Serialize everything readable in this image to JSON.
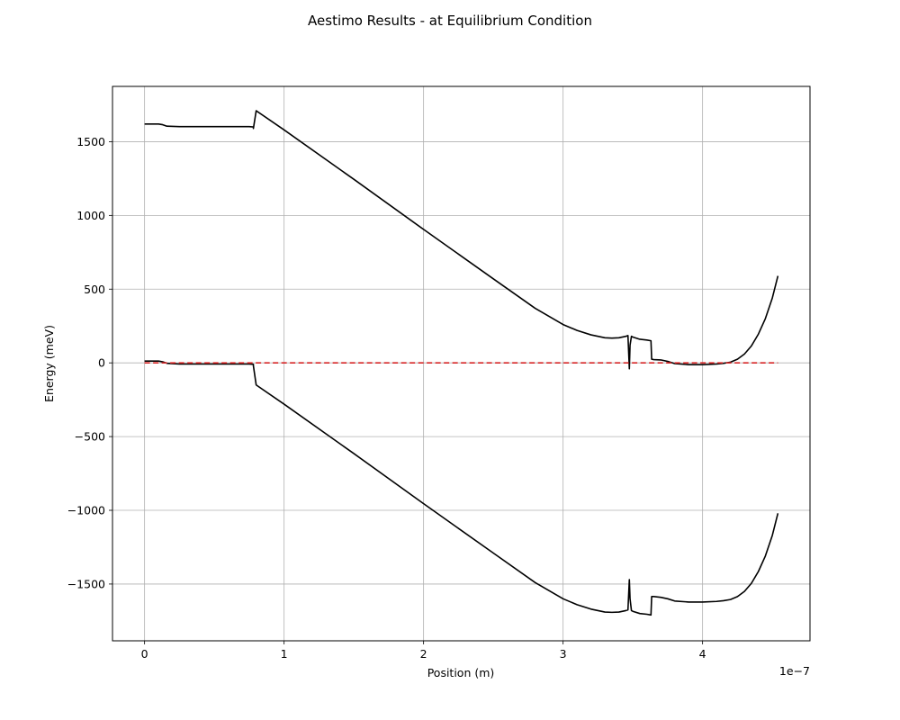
{
  "chart_data": {
    "type": "line",
    "title": "Aestimo Results - at Equilibrium Condition",
    "xlabel": "Position (m)",
    "ylabel": "Energy (meV)",
    "x_offset_label": "1e−7",
    "xlim": [
      -0.23,
      4.77
    ],
    "ylim": [
      -1885,
      1875
    ],
    "x_ticks": [
      0,
      1,
      2,
      3,
      4
    ],
    "x_tick_labels": [
      "0",
      "1",
      "2",
      "3",
      "4"
    ],
    "y_ticks": [
      -1500,
      -1000,
      -500,
      0,
      500,
      1000,
      1500
    ],
    "y_tick_labels": [
      "−1500",
      "−1000",
      "−500",
      "0",
      "500",
      "1000",
      "1500"
    ],
    "grid": true,
    "colors": {
      "band": "#000000",
      "fermi": "#d62728",
      "grid": "#b0b0b0"
    },
    "series": [
      {
        "style": "solid",
        "color": "#000000",
        "x": [
          0,
          0.1,
          0.13,
          0.16,
          0.25,
          0.5,
          0.75,
          0.78,
          0.78,
          0.8,
          1.0,
          1.5,
          2.0,
          2.5,
          2.8,
          3.0,
          3.1,
          3.2,
          3.3,
          3.35,
          3.4,
          3.45,
          3.465,
          3.475,
          3.48,
          3.49,
          3.5,
          3.55,
          3.6,
          3.63,
          3.635,
          3.65,
          3.7,
          3.75,
          3.8,
          3.9,
          4.0,
          4.1,
          4.15,
          4.2,
          4.25,
          4.3,
          4.35,
          4.4,
          4.45,
          4.5,
          4.54
        ],
        "y": [
          1620,
          1620,
          1615,
          1605,
          1602,
          1602,
          1602,
          1600,
          1590,
          1710,
          1580,
          1245,
          905,
          570,
          370,
          260,
          220,
          190,
          170,
          168,
          170,
          180,
          185,
          -40,
          120,
          180,
          175,
          160,
          155,
          150,
          25,
          22,
          20,
          10,
          -5,
          -12,
          -12,
          -8,
          -3,
          5,
          25,
          60,
          115,
          195,
          300,
          440,
          590
        ]
      },
      {
        "style": "solid",
        "color": "#000000",
        "x": [
          0,
          0.1,
          0.13,
          0.16,
          0.25,
          0.5,
          0.75,
          0.78,
          0.78,
          0.8,
          1.0,
          1.5,
          2.0,
          2.5,
          2.8,
          3.0,
          3.1,
          3.2,
          3.3,
          3.35,
          3.4,
          3.45,
          3.465,
          3.475,
          3.48,
          3.49,
          3.5,
          3.55,
          3.6,
          3.63,
          3.635,
          3.65,
          3.7,
          3.75,
          3.8,
          3.9,
          4.0,
          4.1,
          4.15,
          4.2,
          4.25,
          4.3,
          4.35,
          4.4,
          4.45,
          4.5,
          4.54
        ],
        "y": [
          12,
          12,
          7,
          -3,
          -8,
          -8,
          -8,
          -10,
          -20,
          -150,
          -280,
          -615,
          -955,
          -1290,
          -1490,
          -1600,
          -1640,
          -1670,
          -1690,
          -1692,
          -1690,
          -1680,
          -1675,
          -1470,
          -1600,
          -1680,
          -1685,
          -1700,
          -1705,
          -1710,
          -1585,
          -1585,
          -1590,
          -1600,
          -1615,
          -1622,
          -1622,
          -1618,
          -1613,
          -1605,
          -1585,
          -1550,
          -1495,
          -1415,
          -1310,
          -1170,
          -1020
        ]
      },
      {
        "style": "dashed",
        "color": "#d62728",
        "x": [
          0,
          4.54
        ],
        "y": [
          0,
          0
        ]
      }
    ]
  }
}
